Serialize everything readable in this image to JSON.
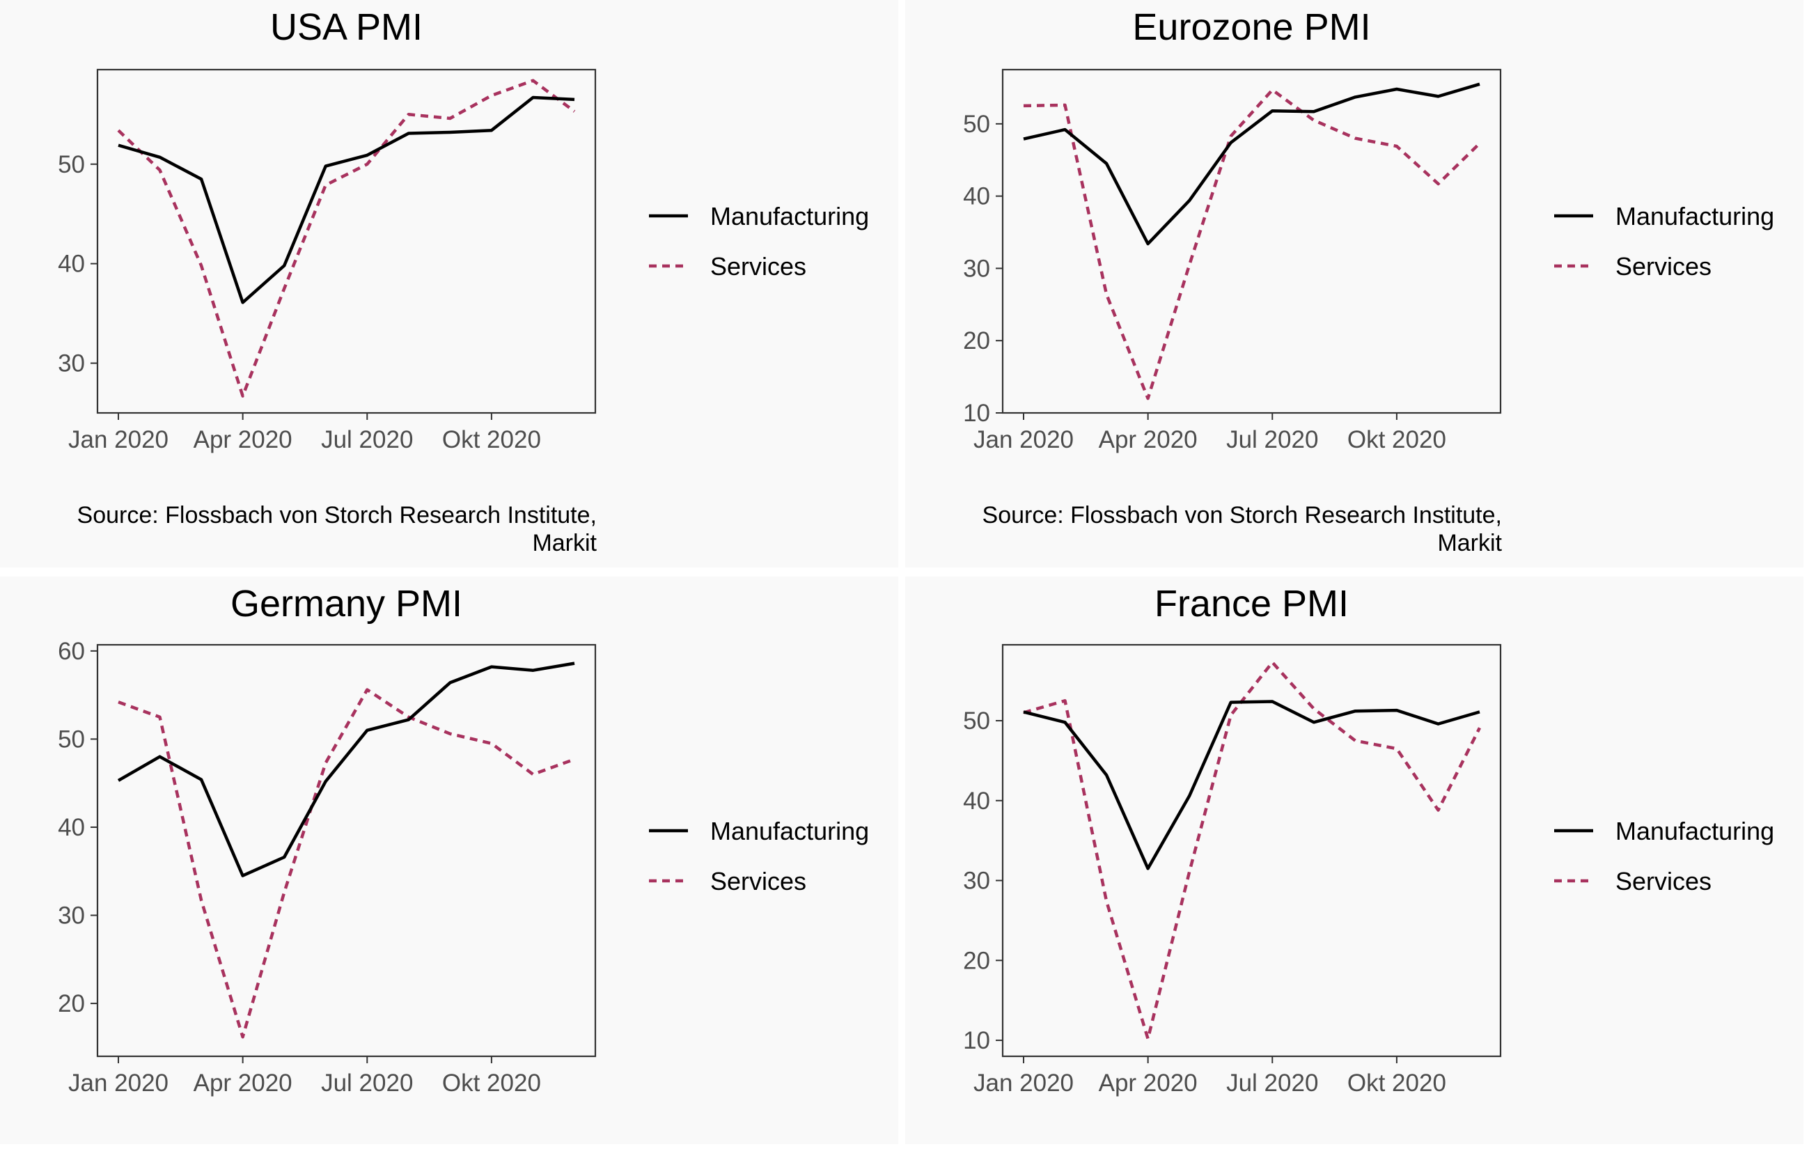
{
  "legend": {
    "manufacturing": "Manufacturing",
    "services": "Services"
  },
  "colors": {
    "manufacturing": "#000000",
    "services": "#a8325e"
  },
  "x_tick_labels": [
    "Jan 2020",
    "Apr 2020",
    "Jul 2020",
    "Okt 2020"
  ],
  "chart_data": [
    {
      "type": "line",
      "title": "USA PMI",
      "caption": [
        "Source: Flossbach von Storch Research Institute,",
        "Markit"
      ],
      "x": [
        "2020-01",
        "2020-02",
        "2020-03",
        "2020-04",
        "2020-05",
        "2020-06",
        "2020-07",
        "2020-08",
        "2020-09",
        "2020-10",
        "2020-11",
        "2020-12"
      ],
      "x_ticks": [
        "2020-01",
        "2020-04",
        "2020-07",
        "2020-10"
      ],
      "ylim": [
        25,
        59.5
      ],
      "yticks": [
        30,
        40,
        50
      ],
      "series": [
        {
          "name": "Manufacturing",
          "values": [
            51.9,
            50.7,
            48.5,
            36.1,
            39.8,
            49.8,
            50.9,
            53.1,
            53.2,
            53.4,
            56.7,
            56.5
          ]
        },
        {
          "name": "Services",
          "values": [
            53.4,
            49.4,
            39.8,
            26.7,
            37.5,
            47.9,
            50.0,
            55.0,
            54.6,
            56.9,
            58.4,
            55.3
          ]
        }
      ]
    },
    {
      "type": "line",
      "title": "Eurozone PMI",
      "caption": [
        "Source: Flossbach von Storch Research Institute,",
        "Markit"
      ],
      "x": [
        "2020-01",
        "2020-02",
        "2020-03",
        "2020-04",
        "2020-05",
        "2020-06",
        "2020-07",
        "2020-08",
        "2020-09",
        "2020-10",
        "2020-11",
        "2020-12"
      ],
      "x_ticks": [
        "2020-01",
        "2020-04",
        "2020-07",
        "2020-10"
      ],
      "ylim": [
        10,
        57.5
      ],
      "yticks": [
        10,
        20,
        30,
        40,
        50
      ],
      "series": [
        {
          "name": "Manufacturing",
          "values": [
            47.9,
            49.2,
            44.5,
            33.4,
            39.4,
            47.4,
            51.8,
            51.7,
            53.7,
            54.8,
            53.8,
            55.5
          ]
        },
        {
          "name": "Services",
          "values": [
            52.5,
            52.6,
            26.4,
            12.0,
            30.5,
            48.3,
            54.7,
            50.5,
            48.0,
            46.9,
            41.7,
            47.3
          ]
        }
      ]
    },
    {
      "type": "line",
      "title": "Germany PMI",
      "caption": [],
      "x": [
        "2020-01",
        "2020-02",
        "2020-03",
        "2020-04",
        "2020-05",
        "2020-06",
        "2020-07",
        "2020-08",
        "2020-09",
        "2020-10",
        "2020-11",
        "2020-12"
      ],
      "x_ticks": [
        "2020-01",
        "2020-04",
        "2020-07",
        "2020-10"
      ],
      "ylim": [
        14,
        60.7
      ],
      "yticks": [
        20,
        30,
        40,
        50,
        60
      ],
      "series": [
        {
          "name": "Manufacturing",
          "values": [
            45.3,
            48.0,
            45.4,
            34.5,
            36.6,
            45.2,
            51.0,
            52.2,
            56.4,
            58.2,
            57.8,
            58.6
          ]
        },
        {
          "name": "Services",
          "values": [
            54.2,
            52.5,
            31.7,
            16.2,
            32.6,
            47.3,
            55.6,
            52.5,
            50.6,
            49.5,
            46.0,
            47.7
          ]
        }
      ]
    },
    {
      "type": "line",
      "title": "France PMI",
      "caption": [],
      "x": [
        "2020-01",
        "2020-02",
        "2020-03",
        "2020-04",
        "2020-05",
        "2020-06",
        "2020-07",
        "2020-08",
        "2020-09",
        "2020-10",
        "2020-11",
        "2020-12"
      ],
      "x_ticks": [
        "2020-01",
        "2020-04",
        "2020-07",
        "2020-10"
      ],
      "ylim": [
        8,
        59.5
      ],
      "yticks": [
        10,
        20,
        30,
        40,
        50
      ],
      "series": [
        {
          "name": "Manufacturing",
          "values": [
            51.1,
            49.8,
            43.2,
            31.5,
            40.6,
            52.3,
            52.4,
            49.8,
            51.2,
            51.3,
            49.6,
            51.1
          ]
        },
        {
          "name": "Services",
          "values": [
            51.0,
            52.5,
            27.4,
            10.2,
            31.1,
            50.7,
            57.3,
            51.5,
            47.5,
            46.5,
            38.8,
            49.1
          ]
        }
      ]
    }
  ]
}
